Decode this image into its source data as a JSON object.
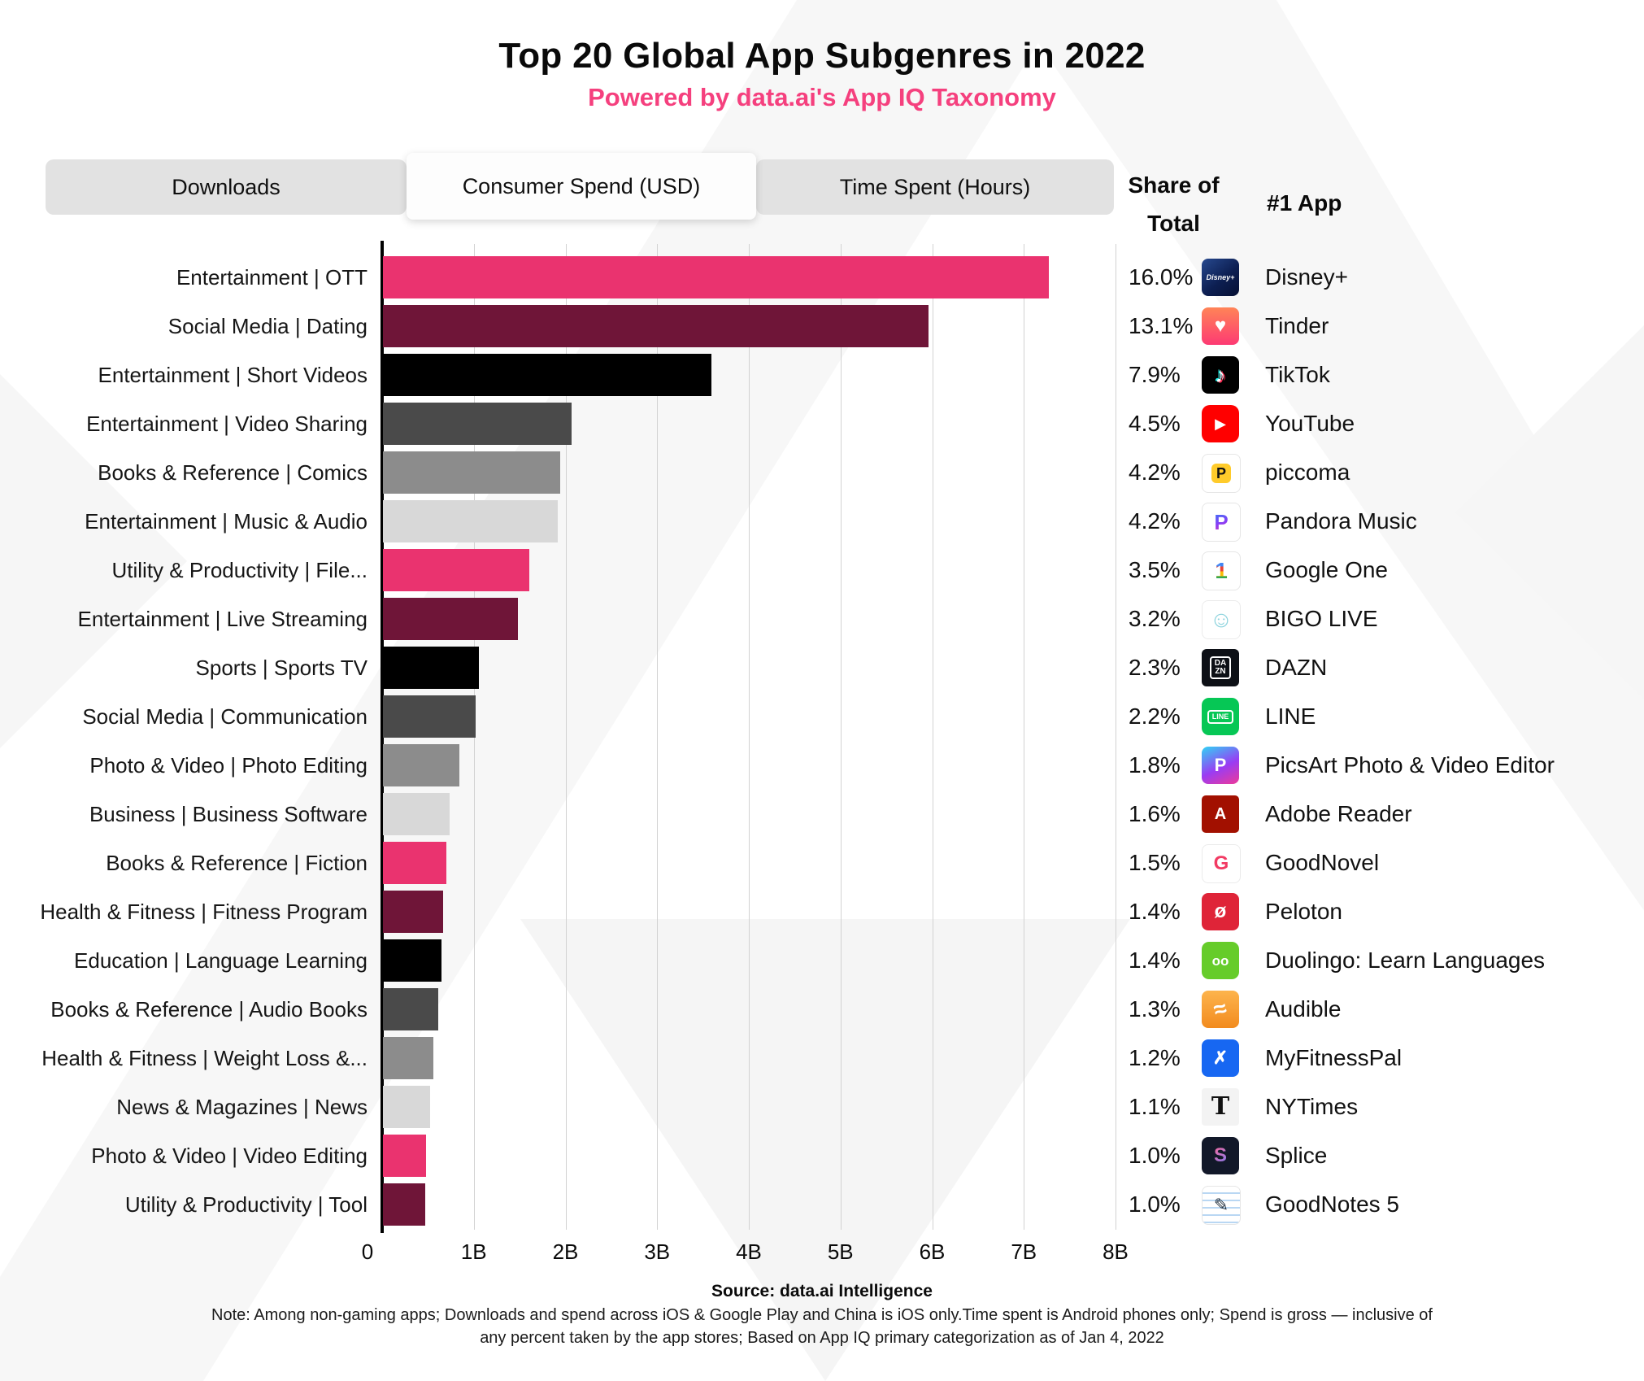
{
  "title": "Top 20 Global App Subgenres in 2022",
  "subtitle": "Powered by data.ai's App IQ Taxonomy",
  "tabs": [
    {
      "label": "Downloads",
      "active": false
    },
    {
      "label": "Consumer Spend (USD)",
      "active": true
    },
    {
      "label": "Time Spent (Hours)",
      "active": false
    }
  ],
  "columns": {
    "share_line1": "Share of",
    "share_line2": "Total",
    "app_header": "#1 App"
  },
  "chart_data": {
    "type": "bar",
    "orientation": "horizontal",
    "unit": "USD (billions)",
    "xlabel": "Consumer Spend (USD)",
    "xlim": [
      0,
      8
    ],
    "xticks": [
      "0",
      "1B",
      "2B",
      "3B",
      "4B",
      "5B",
      "6B",
      "7B",
      "8B"
    ],
    "grid": true,
    "bar_palette": [
      "#EA336F",
      "#6F1538",
      "#000000",
      "#4A4A4A",
      "#8C8C8C",
      "#D8D8D8"
    ],
    "rows": [
      {
        "category": "Entertainment | OTT",
        "value_b": 7.26,
        "share": "16.0%",
        "app": "Disney+",
        "color": "#EA336F",
        "icon": {
          "bg": "linear-gradient(140deg,#27498f,#0d1f52 55%,#060f33)",
          "glyph": "Disney+",
          "fg": "#ffffff",
          "size": 9,
          "style": "italic",
          "weight": 700,
          "radius": 8
        }
      },
      {
        "category": "Social Media | Dating",
        "value_b": 5.95,
        "share": "13.1%",
        "app": "Tinder",
        "color": "#6F1538",
        "icon": {
          "bg": "linear-gradient(180deg,#ff8457,#fd3a73)",
          "glyph": "♥",
          "fg": "#ffffff",
          "size": 24,
          "radius": 8
        }
      },
      {
        "category": "Entertainment | Short Videos",
        "value_b": 3.58,
        "share": "7.9%",
        "app": "TikTok",
        "color": "#000000",
        "icon": {
          "bg": "#000000",
          "glyph": "♪",
          "fg": "#ffffff",
          "size": 26,
          "weight": 700,
          "shadow": "2px 1px 0 #fe2c55, -2px -1px 0 #25f4ee",
          "radius": 8
        }
      },
      {
        "category": "Entertainment | Video Sharing",
        "value_b": 2.06,
        "share": "4.5%",
        "app": "YouTube",
        "color": "#4A4A4A",
        "icon": {
          "bg": "#ff0000",
          "glyph": "▶",
          "fg": "#ffffff",
          "size": 18,
          "radius": 10
        }
      },
      {
        "category": "Books & Reference | Comics",
        "value_b": 1.93,
        "share": "4.2%",
        "app": "piccoma",
        "color": "#8C8C8C",
        "icon": {
          "bg": "#ffffff",
          "border": "1px solid #e6e6e6",
          "inner_bg": "#ffcb2b",
          "glyph": "P",
          "fg": "#111111",
          "size": 18,
          "weight": 800,
          "radius": 8
        }
      },
      {
        "category": "Entertainment | Music & Audio",
        "value_b": 1.91,
        "share": "4.2%",
        "app": "Pandora Music",
        "color": "#D8D8D8",
        "icon": {
          "bg": "#ffffff",
          "border": "1px solid #e6e6e6",
          "glyph": "P",
          "fg_gradient": "linear-gradient(160deg,#2f79f7,#8b3df5 55%,#e8329c)",
          "size": 26,
          "weight": 700,
          "radius": 8
        }
      },
      {
        "category": "Utility & Productivity | File...",
        "value_b": 1.6,
        "share": "3.5%",
        "app": "Google One",
        "color": "#EA336F",
        "icon": {
          "bg": "#ffffff",
          "border": "1px solid #e6e6e6",
          "glyph": "1",
          "fg_gradient": "linear-gradient(180deg,#4285f4 30%,#ea4335 30% 52%,#fbbc05 52% 74%,#34a853 74%)",
          "size": 28,
          "weight": 700,
          "radius": 8
        }
      },
      {
        "category": "Entertainment | Live Streaming",
        "value_b": 1.47,
        "share": "3.2%",
        "app": "BIGO LIVE",
        "color": "#6F1538",
        "icon": {
          "bg": "#ffffff",
          "border": "1px solid #ebebeb",
          "glyph": "☺",
          "fg": "#8ed4de",
          "size": 28,
          "radius": 8
        }
      },
      {
        "category": "Sports | Sports TV",
        "value_b": 1.05,
        "share": "2.3%",
        "app": "DAZN",
        "color": "#000000",
        "icon": {
          "bg": "#0d1016",
          "glyph": "DA\nZN",
          "fg": "#ffffff",
          "size": 10,
          "weight": 800,
          "boxed": true,
          "radius": 6
        }
      },
      {
        "category": "Social Media | Communication",
        "value_b": 1.01,
        "share": "2.2%",
        "app": "LINE",
        "color": "#4A4A4A",
        "icon": {
          "bg": "#06c755",
          "glyph": "LINE",
          "fg": "#ffffff",
          "size": 9,
          "weight": 800,
          "boxed": true,
          "radius": 9
        }
      },
      {
        "category": "Photo & Video | Photo Editing",
        "value_b": 0.83,
        "share": "1.8%",
        "app": "PicsArt Photo & Video Editor",
        "color": "#8C8C8C",
        "icon": {
          "bg": "linear-gradient(155deg,#2fd4f5,#9a3cf3 55%,#ee3a99)",
          "glyph": "P",
          "fg": "#ffffff",
          "size": 22,
          "weight": 700,
          "radius": 8
        }
      },
      {
        "category": "Business | Business Software",
        "value_b": 0.73,
        "share": "1.6%",
        "app": "Adobe Reader",
        "color": "#D8D8D8",
        "icon": {
          "bg": "#a21000",
          "glyph": "A",
          "fg": "#ffffff",
          "size": 20,
          "weight": 700,
          "radius": 5
        }
      },
      {
        "category": "Books & Reference | Fiction",
        "value_b": 0.69,
        "share": "1.5%",
        "app": "GoodNovel",
        "color": "#EA336F",
        "icon": {
          "bg": "#ffffff",
          "border": "1px solid #ebebeb",
          "glyph": "G",
          "fg": "#f23a63",
          "size": 24,
          "weight": 800,
          "radius": 8
        }
      },
      {
        "category": "Health & Fitness | Fitness Program",
        "value_b": 0.66,
        "share": "1.4%",
        "app": "Peloton",
        "color": "#6F1538",
        "icon": {
          "bg": "#df2438",
          "glyph": "ø",
          "fg": "#ffffff",
          "size": 24,
          "weight": 700,
          "radius": 8
        }
      },
      {
        "category": "Education | Language Learning",
        "value_b": 0.64,
        "share": "1.4%",
        "app": "Duolingo: Learn Languages",
        "color": "#000000",
        "icon": {
          "bg": "#66cc2a",
          "glyph": "oo",
          "fg": "#ffffff",
          "size": 17,
          "weight": 900,
          "radius": 9
        }
      },
      {
        "category": "Books & Reference | Audio Books",
        "value_b": 0.6,
        "share": "1.3%",
        "app": "Audible",
        "color": "#4A4A4A",
        "icon": {
          "bg": "linear-gradient(180deg,#fdb44d,#f28b1e)",
          "glyph": "≈",
          "fg": "#ffffff",
          "size": 28,
          "weight": 700,
          "rotate": -15,
          "radius": 8
        }
      },
      {
        "category": "Health & Fitness | Weight Loss &...",
        "value_b": 0.55,
        "share": "1.2%",
        "app": "MyFitnessPal",
        "color": "#8C8C8C",
        "icon": {
          "bg": "#1767f2",
          "glyph": "✗",
          "fg": "#ffffff",
          "size": 22,
          "weight": 700,
          "radius": 8
        }
      },
      {
        "category": "News & Magazines | News",
        "value_b": 0.51,
        "share": "1.1%",
        "app": "NYTimes",
        "color": "#D8D8D8",
        "icon": {
          "bg": "#f3f3f3",
          "glyph": "T",
          "fg": "#111111",
          "serif": true,
          "size": 30,
          "weight": 700,
          "radius": 4
        }
      },
      {
        "category": "Photo & Video | Video Editing",
        "value_b": 0.47,
        "share": "1.0%",
        "app": "Splice",
        "color": "#EA336F",
        "icon": {
          "bg": "#121829",
          "glyph": "S",
          "fg_gradient": "linear-gradient(140deg,#f66a9c,#7e7bf5)",
          "size": 24,
          "weight": 800,
          "radius": 8
        }
      },
      {
        "category": "Utility & Productivity | Tool",
        "value_b": 0.46,
        "share": "1.0%",
        "app": "GoodNotes 5",
        "color": "#6F1538",
        "icon": {
          "bg": "repeating-linear-gradient(180deg,#ffffff 0 7px,#b9d7f3 7px 9px)",
          "border": "1px solid #e6e6e6",
          "glyph": "✎",
          "fg": "#253341",
          "size": 22,
          "radius": 8
        }
      }
    ]
  },
  "footer": {
    "source": "Source: data.ai Intelligence",
    "note_line1": "Note: Among non-gaming apps; Downloads and spend  across iOS & Google Play and China is iOS only.Time spent is Android phones only; Spend is gross — inclusive of",
    "note_line2": "any percent taken by the app stores; Based on App IQ primary categorization as of Jan 4, 2022"
  }
}
